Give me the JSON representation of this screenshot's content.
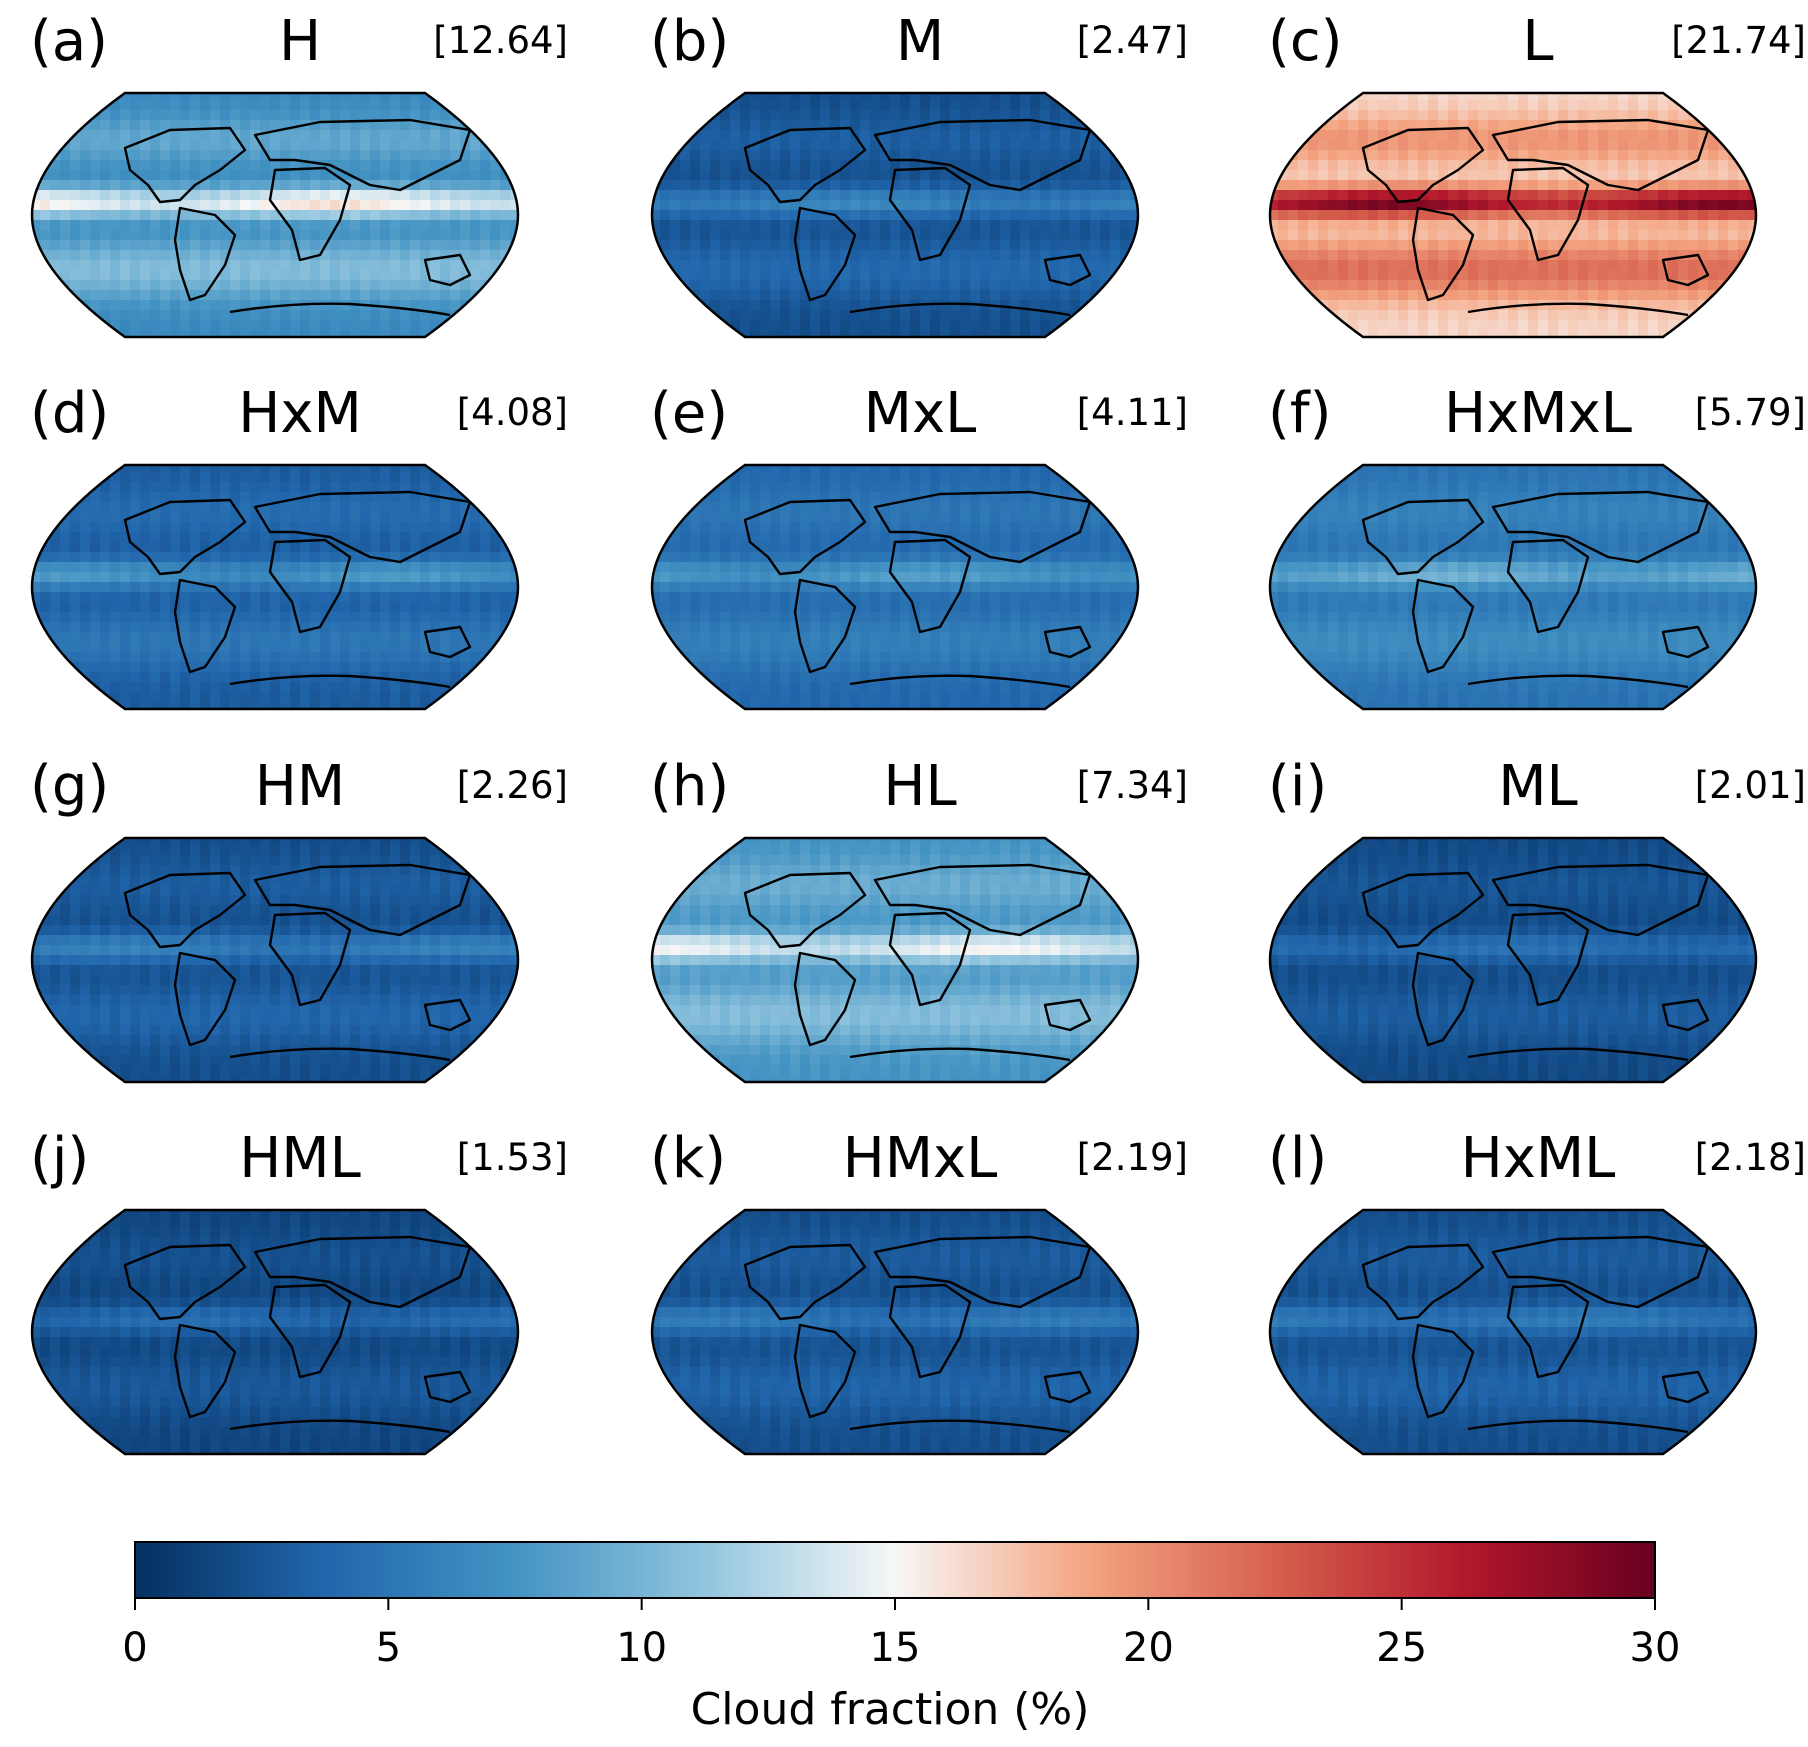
{
  "panels": [
    {
      "letter": "(a)",
      "title": "H",
      "value": "[12.64]"
    },
    {
      "letter": "(b)",
      "title": "M",
      "value": "[2.47]"
    },
    {
      "letter": "(c)",
      "title": "L",
      "value": "[21.74]"
    },
    {
      "letter": "(d)",
      "title": "HxM",
      "value": "[4.08]"
    },
    {
      "letter": "(e)",
      "title": "MxL",
      "value": "[4.11]"
    },
    {
      "letter": "(f)",
      "title": "HxMxL",
      "value": "[5.79]"
    },
    {
      "letter": "(g)",
      "title": "HM",
      "value": "[2.26]"
    },
    {
      "letter": "(h)",
      "title": "HL",
      "value": "[7.34]"
    },
    {
      "letter": "(i)",
      "title": "ML",
      "value": "[2.01]"
    },
    {
      "letter": "(j)",
      "title": "HML",
      "value": "[1.53]"
    },
    {
      "letter": "(k)",
      "title": "HMxL",
      "value": "[2.19]"
    },
    {
      "letter": "(l)",
      "title": "HxML",
      "value": "[2.18]"
    }
  ],
  "chart_data": {
    "type": "heatmap",
    "projection": "Robinson (global map)",
    "colormap": "RdBu_r",
    "colorbar": {
      "label": "Cloud fraction (%)",
      "range": [
        0,
        30
      ],
      "ticks": [
        "0",
        "5",
        "10",
        "15",
        "20",
        "25",
        "30"
      ]
    },
    "colors": [
      "#053061",
      "#2166ac",
      "#4393c3",
      "#92c5de",
      "#f7f7f7",
      "#f4a582",
      "#d6604d",
      "#b2182b",
      "#67001f"
    ]
  }
}
